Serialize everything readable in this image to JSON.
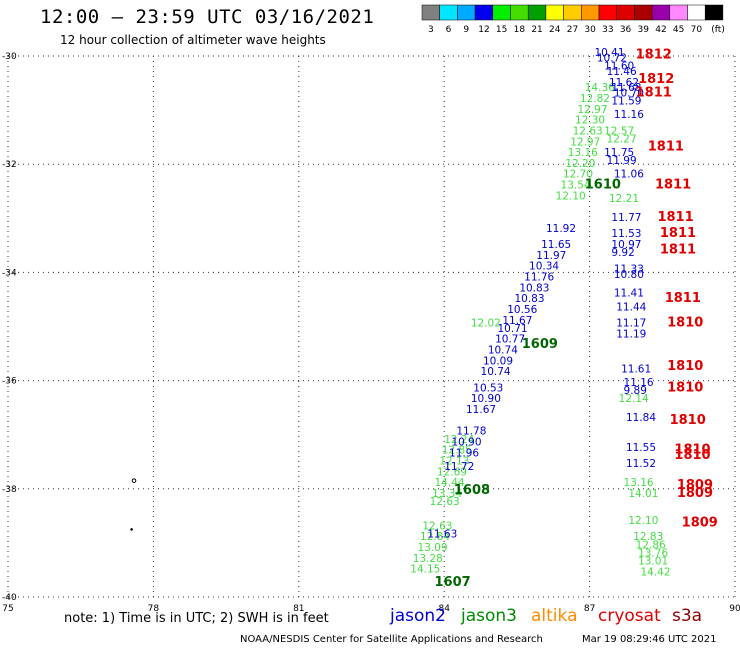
{
  "title": "12:00 – 23:59 UTC 03/16/2021",
  "subtitle": "12 hour collection of altimeter wave heights",
  "note": "note: 1) Time is in UTC; 2) SWH is in feet",
  "credit": "NOAA/NESDIS Center for Satellite Applications and Research",
  "generated": "Mar 19 08:29:46 UTC 2021",
  "satellites": [
    {
      "name": "jason2",
      "color": "#0000d0"
    },
    {
      "name": "jason3",
      "color": "#008c00"
    },
    {
      "name": "altika",
      "color": "#ff8c00"
    },
    {
      "name": "cryosat",
      "color": "#e00000"
    },
    {
      "name": "s3a",
      "color": "#8b0000"
    }
  ],
  "color_scale": {
    "labels": [
      "3",
      "6",
      "9",
      "12",
      "15",
      "18",
      "21",
      "24",
      "27",
      "30",
      "33",
      "36",
      "39",
      "42",
      "45",
      "70",
      "(ft)"
    ],
    "colors": [
      "#808080",
      "#00e6ff",
      "#00aaff",
      "#0000ee",
      "#00ee00",
      "#44dd00",
      "#00a000",
      "#ffff00",
      "#ffcc00",
      "#ff9900",
      "#ff0000",
      "#dd0000",
      "#aa0000",
      "#9900aa",
      "#ff88ff",
      "#ffffff",
      "#000000"
    ]
  },
  "chart_data": {
    "type": "scatter",
    "title": "12:00 – 23:59 UTC 03/16/2021",
    "subtitle": "12 hour collection of altimeter wave heights",
    "xlim": [
      75,
      90
    ],
    "ylim": [
      -40,
      -30
    ],
    "x_ticks": [
      "75",
      "78",
      "81",
      "84",
      "87",
      "90"
    ],
    "y_ticks": [
      "-30",
      "-32",
      "-34",
      "-36",
      "-38",
      "-40"
    ],
    "grid": true,
    "series": [
      {
        "name": "jason3",
        "color": "#44dd44",
        "points": [
          {
            "x": 83.3,
            "y": -39.55,
            "label": "14.15"
          },
          {
            "x": 83.35,
            "y": -39.35,
            "label": "13.28"
          },
          {
            "x": 83.45,
            "y": -39.15,
            "label": "13.09"
          },
          {
            "x": 83.5,
            "y": -38.95,
            "label": "12.84"
          },
          {
            "x": 83.55,
            "y": -38.75,
            "label": "12.63"
          },
          {
            "x": 83.7,
            "y": -38.3,
            "label": "12.63"
          },
          {
            "x": 83.75,
            "y": -38.15,
            "label": "13.34"
          },
          {
            "x": 83.8,
            "y": -37.95,
            "label": "14.44"
          },
          {
            "x": 83.85,
            "y": -37.75,
            "label": "12.69"
          },
          {
            "x": 83.9,
            "y": -37.55,
            "label": "12.13"
          },
          {
            "x": 83.95,
            "y": -37.35,
            "label": "12.85"
          },
          {
            "x": 84.0,
            "y": -37.15,
            "label": "12.24"
          },
          {
            "x": 84.55,
            "y": -35.0,
            "label": "12.02"
          },
          {
            "x": 86.3,
            "y": -32.65,
            "label": "12.10"
          },
          {
            "x": 86.4,
            "y": -32.45,
            "label": "13.54"
          },
          {
            "x": 86.45,
            "y": -32.25,
            "label": "12.70"
          },
          {
            "x": 86.5,
            "y": -32.05,
            "label": "12.20"
          },
          {
            "x": 86.55,
            "y": -31.85,
            "label": "13.16"
          },
          {
            "x": 86.6,
            "y": -31.65,
            "label": "12.97"
          },
          {
            "x": 86.65,
            "y": -31.45,
            "label": "12.63"
          },
          {
            "x": 86.7,
            "y": -31.25,
            "label": "12.30"
          },
          {
            "x": 86.75,
            "y": -31.05,
            "label": "12.97"
          },
          {
            "x": 86.8,
            "y": -30.85,
            "label": "12.82"
          },
          {
            "x": 86.9,
            "y": -30.65,
            "label": "14.36"
          },
          {
            "x": 87.3,
            "y": -31.45,
            "label": "12.57"
          },
          {
            "x": 87.35,
            "y": -31.6,
            "label": "12.27"
          },
          {
            "x": 87.4,
            "y": -32.7,
            "label": "12.21"
          },
          {
            "x": 87.6,
            "y": -36.4,
            "label": "12.14"
          },
          {
            "x": 87.7,
            "y": -37.95,
            "label": "13.16"
          },
          {
            "x": 87.8,
            "y": -38.15,
            "label": "14.01"
          },
          {
            "x": 87.8,
            "y": -38.65,
            "label": "12.10"
          },
          {
            "x": 87.9,
            "y": -38.95,
            "label": "12.83"
          },
          {
            "x": 87.95,
            "y": -39.1,
            "label": "12.86"
          },
          {
            "x": 88.0,
            "y": -39.25,
            "label": "13.76"
          },
          {
            "x": 88.0,
            "y": -39.4,
            "label": "13.01"
          },
          {
            "x": 88.05,
            "y": -39.6,
            "label": "14.42"
          }
        ]
      },
      {
        "name": "jason2",
        "color": "#0000d0",
        "points": [
          {
            "x": 83.65,
            "y": -38.9,
            "label": "11.63"
          },
          {
            "x": 84.0,
            "y": -37.65,
            "label": "11.72"
          },
          {
            "x": 84.1,
            "y": -37.4,
            "label": "11.96"
          },
          {
            "x": 84.15,
            "y": -37.2,
            "label": "10.90"
          },
          {
            "x": 84.25,
            "y": -37.0,
            "label": "11.78"
          },
          {
            "x": 84.45,
            "y": -36.6,
            "label": "11.67"
          },
          {
            "x": 84.55,
            "y": -36.4,
            "label": "10.90"
          },
          {
            "x": 84.6,
            "y": -36.2,
            "label": "10.53"
          },
          {
            "x": 84.75,
            "y": -35.9,
            "label": "10.74"
          },
          {
            "x": 84.8,
            "y": -35.7,
            "label": "10.09"
          },
          {
            "x": 84.9,
            "y": -35.5,
            "label": "10.74"
          },
          {
            "x": 85.05,
            "y": -35.3,
            "label": "10.77"
          },
          {
            "x": 85.1,
            "y": -35.1,
            "label": "10.71"
          },
          {
            "x": 85.2,
            "y": -34.95,
            "label": "11.67"
          },
          {
            "x": 85.3,
            "y": -34.75,
            "label": "10.56"
          },
          {
            "x": 85.45,
            "y": -34.55,
            "label": "10.83"
          },
          {
            "x": 85.55,
            "y": -34.35,
            "label": "10.83"
          },
          {
            "x": 85.65,
            "y": -34.15,
            "label": "11.76"
          },
          {
            "x": 85.75,
            "y": -33.95,
            "label": "10.34"
          },
          {
            "x": 85.9,
            "y": -33.75,
            "label": "11.97"
          },
          {
            "x": 86.0,
            "y": -33.55,
            "label": "11.65"
          },
          {
            "x": 86.1,
            "y": -33.25,
            "label": "11.92"
          },
          {
            "x": 87.1,
            "y": -30.0,
            "label": "10.41"
          },
          {
            "x": 87.15,
            "y": -30.1,
            "label": "10.72"
          },
          {
            "x": 87.3,
            "y": -30.25,
            "label": "11.60"
          },
          {
            "x": 87.35,
            "y": -30.35,
            "label": "11.46"
          },
          {
            "x": 87.4,
            "y": -30.55,
            "label": "11.62"
          },
          {
            "x": 87.45,
            "y": -30.65,
            "label": "11.68"
          },
          {
            "x": 87.5,
            "y": -30.75,
            "label": "10.70"
          },
          {
            "x": 87.45,
            "y": -30.9,
            "label": "11.59"
          },
          {
            "x": 87.5,
            "y": -31.15,
            "label": "11.16"
          },
          {
            "x": 87.3,
            "y": -31.85,
            "label": "11.75"
          },
          {
            "x": 87.35,
            "y": -32.0,
            "label": "11.99"
          },
          {
            "x": 87.5,
            "y": -32.25,
            "label": "11.06"
          },
          {
            "x": 87.45,
            "y": -33.05,
            "label": "11.77"
          },
          {
            "x": 87.45,
            "y": -33.35,
            "label": "11.53"
          },
          {
            "x": 87.45,
            "y": -33.55,
            "label": "10.97"
          },
          {
            "x": 87.45,
            "y": -33.7,
            "label": "9.92"
          },
          {
            "x": 87.5,
            "y": -34.0,
            "label": "11.33"
          },
          {
            "x": 87.5,
            "y": -34.1,
            "label": "10.80"
          },
          {
            "x": 87.5,
            "y": -34.45,
            "label": "11.41"
          },
          {
            "x": 87.55,
            "y": -34.7,
            "label": "11.44"
          },
          {
            "x": 87.55,
            "y": -35.0,
            "label": "11.17"
          },
          {
            "x": 87.55,
            "y": -35.2,
            "label": "11.19"
          },
          {
            "x": 87.65,
            "y": -35.85,
            "label": "11.61"
          },
          {
            "x": 87.7,
            "y": -36.1,
            "label": "11.16"
          },
          {
            "x": 87.7,
            "y": -36.25,
            "label": "9.89"
          },
          {
            "x": 87.75,
            "y": -36.75,
            "label": "11.84"
          },
          {
            "x": 87.75,
            "y": -37.3,
            "label": "11.55"
          },
          {
            "x": 87.75,
            "y": -37.6,
            "label": "11.52"
          }
        ]
      },
      {
        "name": "jason2-labels",
        "color": "#006600",
        "points": [
          {
            "x": 84.2,
            "y": -38.1,
            "label": "1608"
          },
          {
            "x": 85.6,
            "y": -35.4,
            "label": "1609"
          },
          {
            "x": 86.9,
            "y": -32.45,
            "label": "1610"
          },
          {
            "x": 83.8,
            "y": -39.8,
            "label": "1607"
          }
        ]
      },
      {
        "name": "cryosat",
        "color": "#e00000",
        "points": [
          {
            "x": 87.95,
            "y": -30.05,
            "label": "1812"
          },
          {
            "x": 88.0,
            "y": -30.5,
            "label": "1812"
          },
          {
            "x": 87.95,
            "y": -30.75,
            "label": "1811"
          },
          {
            "x": 88.2,
            "y": -31.75,
            "label": "1811"
          },
          {
            "x": 88.35,
            "y": -32.45,
            "label": "1811"
          },
          {
            "x": 88.4,
            "y": -33.05,
            "label": "1811"
          },
          {
            "x": 88.45,
            "y": -33.35,
            "label": "1811"
          },
          {
            "x": 88.45,
            "y": -33.65,
            "label": "1811"
          },
          {
            "x": 88.55,
            "y": -34.55,
            "label": "1811"
          },
          {
            "x": 88.6,
            "y": -35.0,
            "label": "1810"
          },
          {
            "x": 88.6,
            "y": -35.8,
            "label": "1810"
          },
          {
            "x": 88.6,
            "y": -36.2,
            "label": "1810"
          },
          {
            "x": 88.65,
            "y": -36.8,
            "label": "1810"
          },
          {
            "x": 88.75,
            "y": -37.35,
            "label": "1810"
          },
          {
            "x": 88.75,
            "y": -37.45,
            "label": "1810"
          },
          {
            "x": 88.8,
            "y": -38.0,
            "label": "1809"
          },
          {
            "x": 88.8,
            "y": -38.15,
            "label": "1809"
          },
          {
            "x": 88.9,
            "y": -38.7,
            "label": "1809"
          }
        ]
      }
    ]
  }
}
